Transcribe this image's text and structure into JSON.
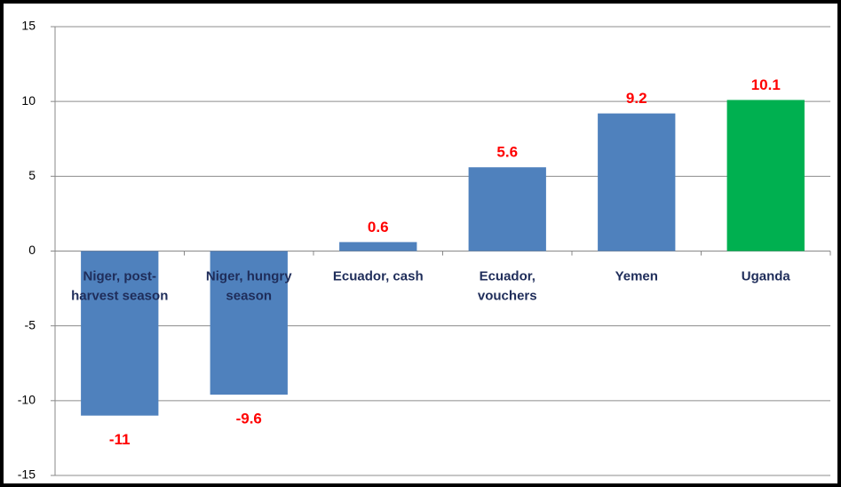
{
  "chart_data": {
    "type": "bar",
    "categories": [
      [
        "Niger, post-",
        "harvest season"
      ],
      [
        "Niger, hungry",
        "season"
      ],
      [
        "Ecuador, cash"
      ],
      [
        "Ecuador,",
        "vouchers"
      ],
      [
        "Yemen"
      ],
      [
        "Uganda"
      ]
    ],
    "values": [
      -11,
      -9.6,
      0.6,
      5.6,
      9.2,
      10.1
    ],
    "colors": [
      "#4f81bd",
      "#4f81bd",
      "#4f81bd",
      "#4f81bd",
      "#4f81bd",
      "#00b050"
    ],
    "ylim": [
      -15,
      15
    ],
    "yticks": [
      -15,
      -10,
      -5,
      0,
      5,
      10,
      15
    ],
    "grid": true
  }
}
